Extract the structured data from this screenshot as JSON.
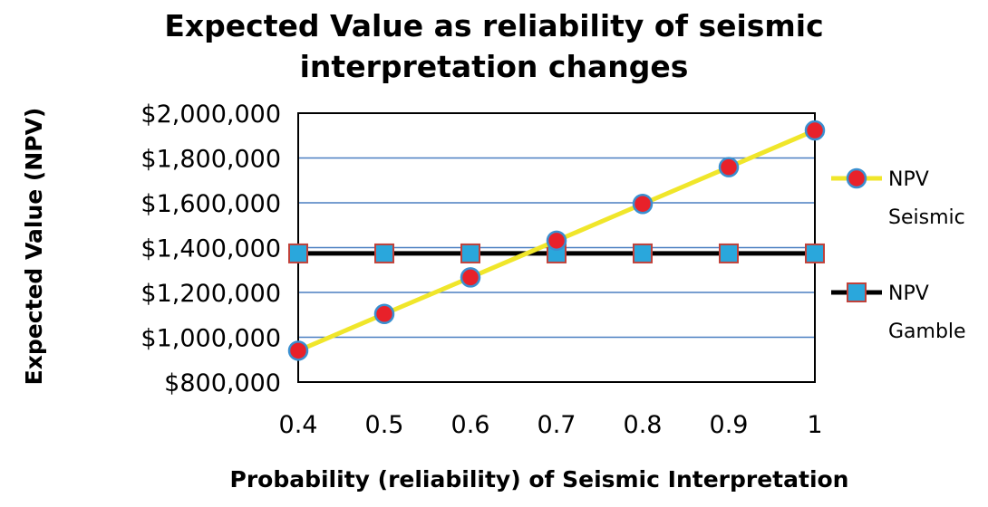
{
  "chart_data": {
    "type": "line",
    "title": "Expected Value as reliability of seismic interpretation changes",
    "title_lines": [
      "Expected Value as reliability of seismic",
      "interpretation changes"
    ],
    "xlabel": "Probability (reliability) of Seismic Interpretation",
    "ylabel": "Expected Value (NPV)",
    "x": [
      0.4,
      0.5,
      0.6,
      0.7,
      0.8,
      0.9,
      1
    ],
    "x_tick_labels": [
      "0.4",
      "0.5",
      "0.6",
      "0.7",
      "0.8",
      "0.9",
      "1"
    ],
    "ylim": [
      800000,
      2000000
    ],
    "y_ticks": [
      800000,
      1000000,
      1200000,
      1400000,
      1600000,
      1800000,
      2000000
    ],
    "y_tick_labels": [
      "$800,000",
      "$1,000,000",
      "$1,200,000",
      "$1,400,000",
      "$1,600,000",
      "$1,800,000",
      "$2,000,000"
    ],
    "grid": true,
    "legend_position": "right",
    "series": [
      {
        "name": "NPV Seismic",
        "legend_lines": [
          "NPV",
          "Seismic"
        ],
        "values": [
          940000,
          1104000,
          1267000,
          1431000,
          1595000,
          1759000,
          1923000
        ],
        "line_color": "#f0e62a",
        "marker": "circle",
        "marker_color": "#e8212a",
        "marker_edge": "#3a8fd0"
      },
      {
        "name": "NPV Gamble",
        "legend_lines": [
          "NPV",
          "Gamble"
        ],
        "values": [
          1374000,
          1374000,
          1374000,
          1374000,
          1374000,
          1374000,
          1374000
        ],
        "line_color": "#000000",
        "marker": "square",
        "marker_color": "#2aa7dc",
        "marker_edge": "#c0413a"
      }
    ],
    "gridline_color": "#4a7fc1"
  }
}
